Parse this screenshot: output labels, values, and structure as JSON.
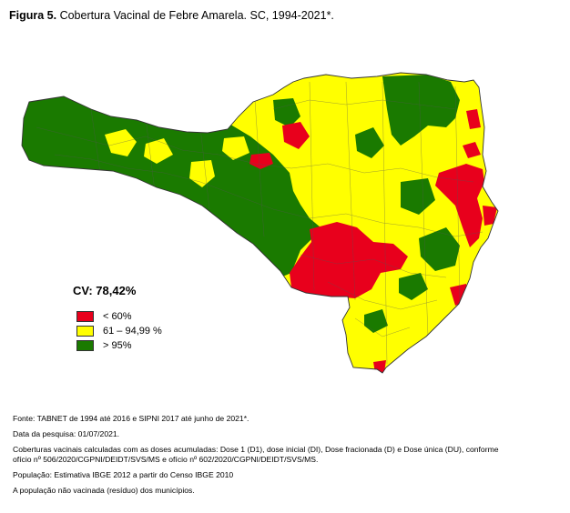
{
  "figure": {
    "label": "Figura 5.",
    "title": "Cobertura Vacinal de Febre Amarela. SC, 1994-2021*."
  },
  "coverage": "CV: 78,42%",
  "legend": [
    {
      "label": "< 60%",
      "color": "#e8001c"
    },
    {
      "label": "61 – 94,99 %",
      "color": "#ffff00"
    },
    {
      "label": "> 95%",
      "color": "#1a7a00"
    }
  ],
  "colors": {
    "border": "#555555"
  },
  "notes": {
    "source": "Fonte: TABNET de 1994 até 2016 e SIPNI 2017 até junho de 2021*.",
    "date": "Data da pesquisa: 01/07/2021.",
    "coverage_line1": "Coberturas vacinais calculadas com as doses acumuladas: Dose 1 (D1), dose inicial (DI),  Dose fracionada (D) e Dose única (DU), conforme",
    "coverage_line2": "ofício nº 506/2020/CGPNI/DEIDT/SVS/MS e ofício nº 602/2020/CGPNI/DEIDT/SVS/MS.",
    "population": "População: Estimativa IBGE 2012 a partir do Censo IBGE 2010",
    "residue": "A população não vacinada (resíduo) dos municípios."
  }
}
